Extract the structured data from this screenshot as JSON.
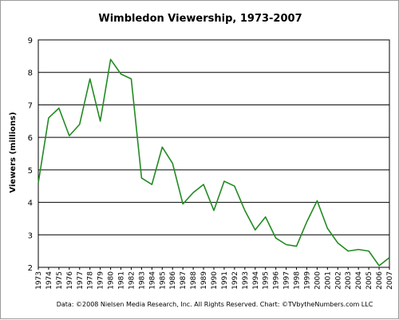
{
  "chart_data": {
    "type": "line",
    "title": "Wimbledon Viewership, 1973-2007",
    "xlabel": "",
    "ylabel": "Viewers (millions)",
    "ylim": [
      2,
      9
    ],
    "yticks": [
      "2",
      "3",
      "4",
      "5",
      "6",
      "7",
      "8",
      "9"
    ],
    "grid": true,
    "legend": "none",
    "source": "Data: ©2008 Nielsen Media Research, Inc. All Rights Reserved. Chart: ©TVbytheNumbers.com LLC",
    "categories": [
      "1973",
      "1974",
      "1975",
      "1976",
      "1977",
      "1978",
      "1979",
      "1980",
      "1981",
      "1982",
      "1983",
      "1984",
      "1985",
      "1986",
      "1987",
      "1988",
      "1989",
      "1990",
      "1991",
      "1992",
      "1993",
      "1994",
      "1995",
      "1996",
      "1997",
      "1998",
      "1999",
      "2000",
      "2001",
      "2002",
      "2003",
      "2004",
      "2005",
      "2006",
      "2007"
    ],
    "series": [
      {
        "color": "#228b22",
        "values": [
          4.6,
          6.6,
          6.9,
          6.05,
          6.4,
          7.8,
          6.5,
          8.4,
          7.95,
          7.8,
          4.75,
          4.55,
          5.7,
          5.2,
          3.95,
          4.3,
          4.55,
          3.75,
          4.65,
          4.5,
          3.75,
          3.15,
          3.55,
          2.9,
          2.7,
          2.65,
          3.4,
          4.05,
          3.2,
          2.75,
          2.5,
          2.55,
          2.5,
          2.05,
          2.3
        ]
      }
    ]
  }
}
